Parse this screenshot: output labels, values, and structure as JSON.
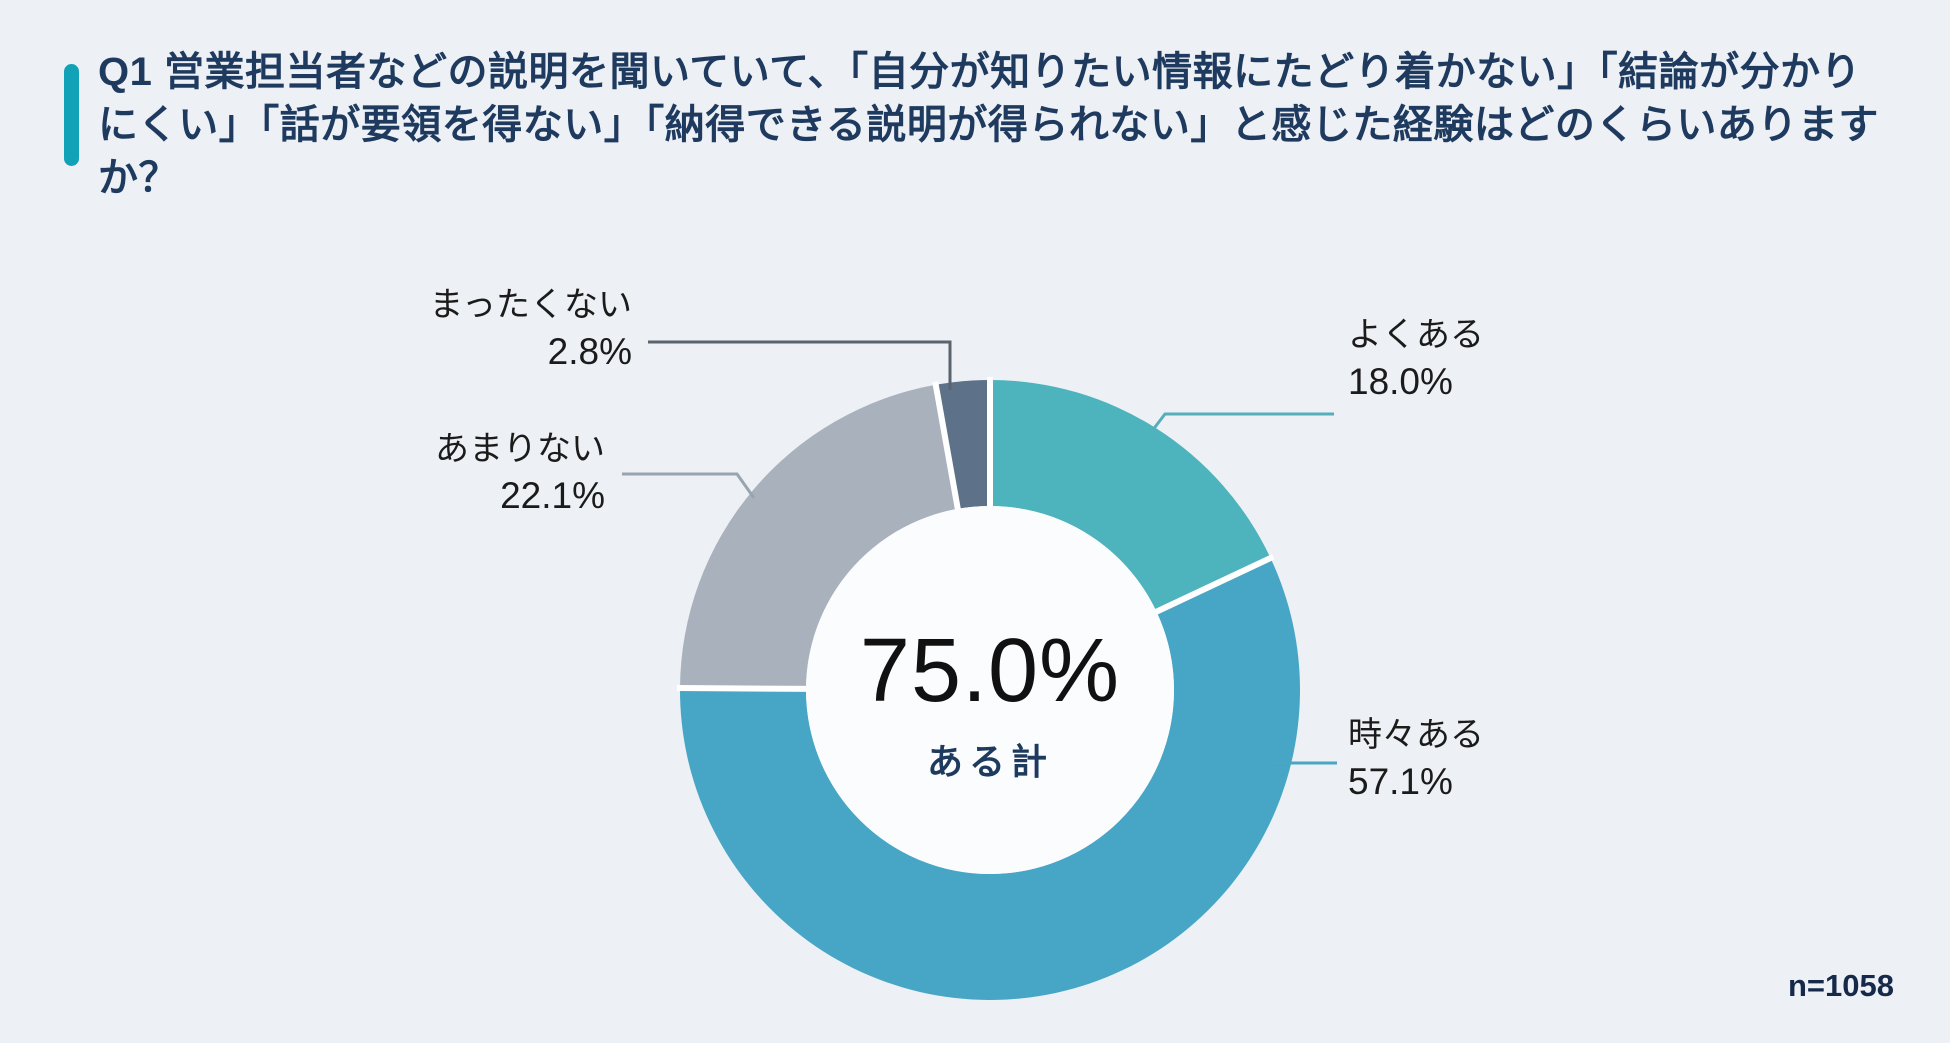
{
  "header": {
    "question": "Q1 営業担当者などの説明を聞いていて、「自分が知りたい情報にたどり着かない」「結論が分かりにくい」「話が要領を得ない」「納得できる説明が得られない」と感じた経験はどのくらいありますか？"
  },
  "chart_data": {
    "type": "pie",
    "subtype": "donut",
    "categories": [
      "よくある",
      "時々ある",
      "あまりない",
      "まったくない"
    ],
    "values": [
      18.0,
      57.1,
      22.1,
      2.8
    ],
    "unit": "%",
    "colors": [
      "#4db3bd",
      "#47a6c5",
      "#a9b1bd",
      "#5d7189"
    ],
    "leader_colors": [
      "#56aebb",
      "#49a7c4",
      "#9aa4af",
      "#59646f"
    ],
    "labels": [
      {
        "name": "よくある",
        "value": "18.0%"
      },
      {
        "name": "時々ある",
        "value": "57.1%"
      },
      {
        "name": "あまりない",
        "value": "22.1%"
      },
      {
        "name": "まったくない",
        "value": "2.8%"
      }
    ],
    "center": {
      "value": "75.0%",
      "label": "ある計"
    },
    "start_position": "top",
    "direction": "clockwise",
    "donut_hole_fill": "#fbfcfe",
    "legend_position": "callout-labels"
  },
  "footer": {
    "sample_size": "n=1058"
  },
  "colors": {
    "background": "#edf0f4",
    "accent_bar": "#12a2b8",
    "title_text": "#1f3a5f",
    "label_text": "#1b1b1b",
    "center_value_text": "#111111",
    "center_label_text": "#1e3a5e",
    "footnote_text": "#16294a",
    "separator": "#ffffff"
  }
}
